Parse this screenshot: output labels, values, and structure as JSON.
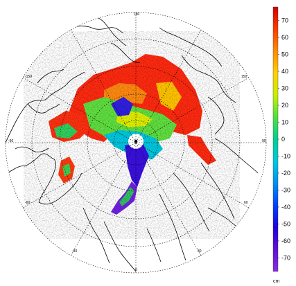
{
  "map": {
    "longitude_labels": [
      "180",
      "-150",
      "150",
      "-90",
      "90",
      "-60",
      "60",
      "-30",
      "0",
      "30"
    ]
  },
  "colorbar": {
    "unit": "cm",
    "ticks": [
      70,
      60,
      50,
      40,
      30,
      20,
      10,
      0,
      -10,
      -20,
      -30,
      -40,
      -50,
      -60,
      -70
    ],
    "range": [
      -78,
      78
    ],
    "colors_top_to_bottom": [
      "#d40000",
      "#ff3a00",
      "#ff8c00",
      "#ffd000",
      "#c8f000",
      "#50e040",
      "#00d090",
      "#00c8e0",
      "#0090f0",
      "#0040ff",
      "#2000e0",
      "#6010d8",
      "#8a2be2"
    ]
  },
  "colors": {
    "coast": "#000000",
    "grid": "#000000",
    "pole_hole": "#ffffff"
  }
}
